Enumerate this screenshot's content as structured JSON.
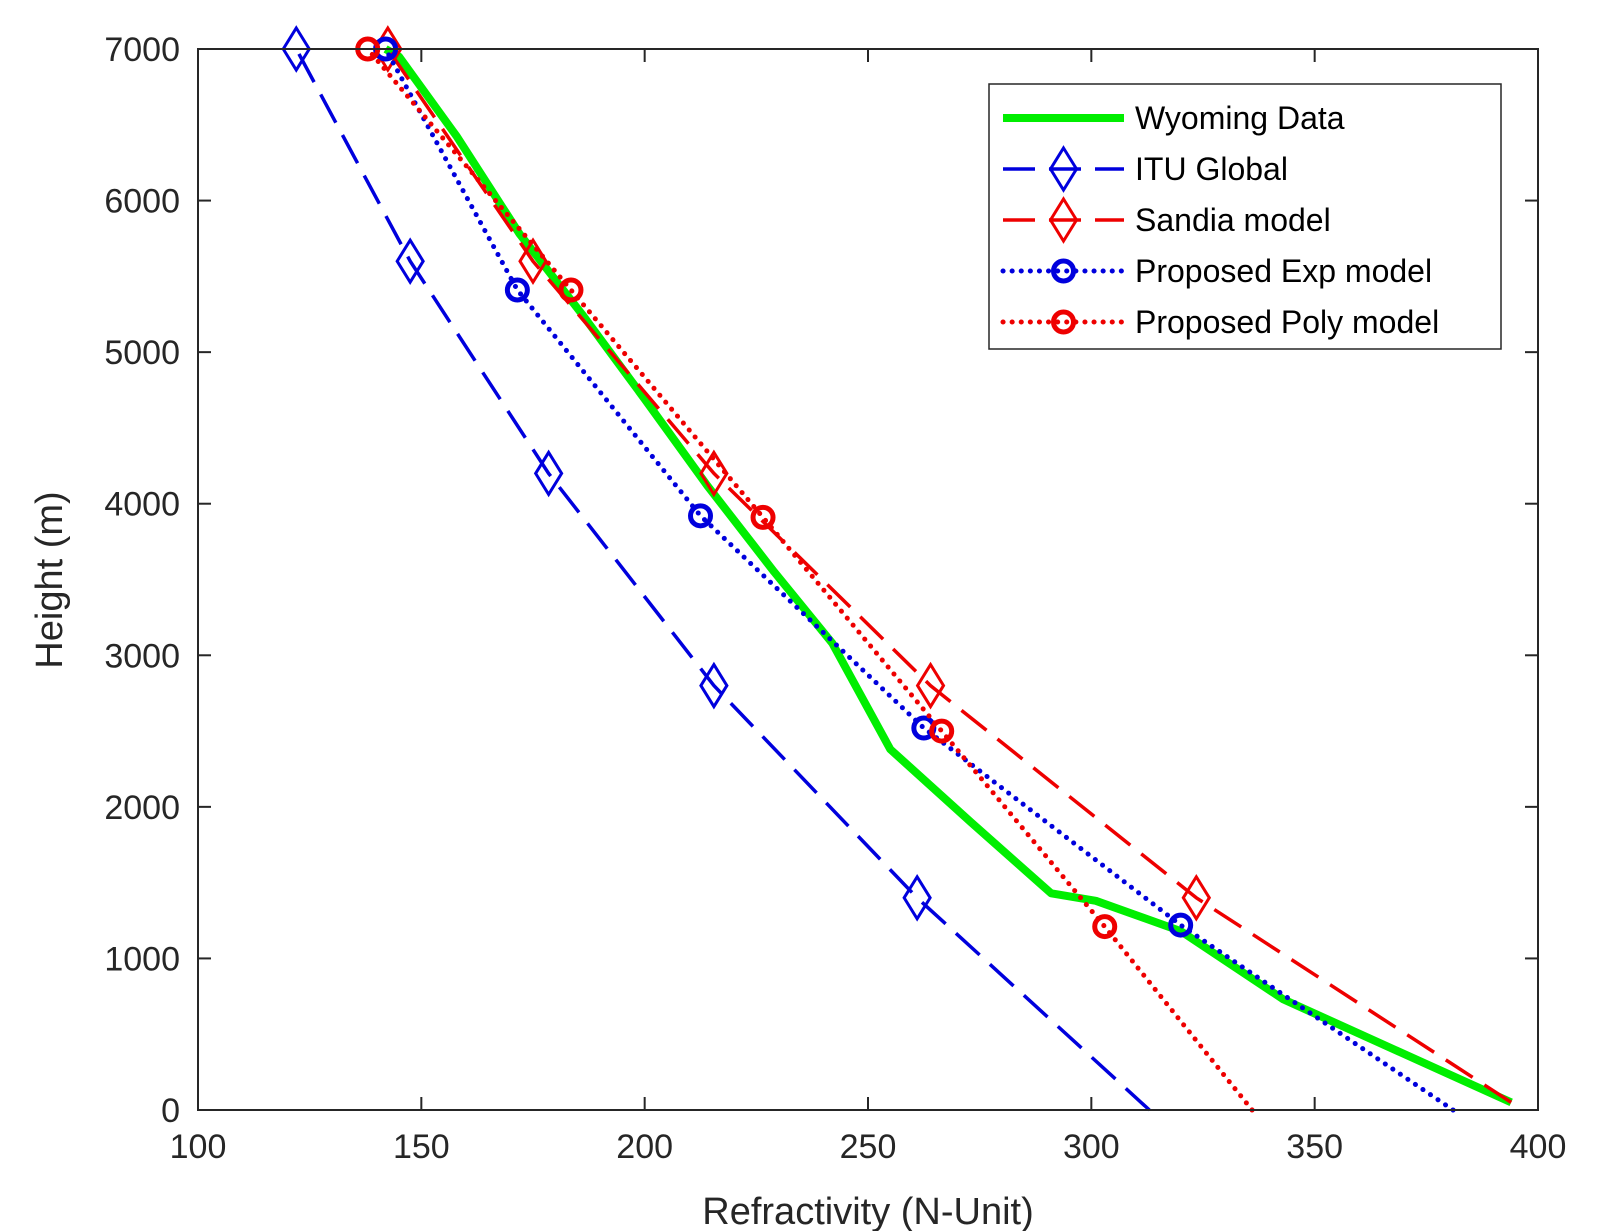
{
  "chart_data": {
    "type": "line",
    "title": "",
    "xlabel": "Refractivity (N-Unit)",
    "ylabel": "Height (m)",
    "xlim": [
      100,
      400
    ],
    "ylim": [
      0,
      7000
    ],
    "xticks": [
      100,
      150,
      200,
      250,
      300,
      350,
      400
    ],
    "yticks": [
      0,
      1000,
      2000,
      3000,
      4000,
      5000,
      6000,
      7000
    ],
    "grid": false,
    "legend_position": "top-right",
    "series": [
      {
        "name": "Wyoming Data",
        "color": "#00ee00",
        "style": "solid",
        "marker": "none",
        "x": [
          394,
          343,
          320,
          301,
          291,
          273,
          255,
          242,
          229,
          214,
          200,
          186,
          172,
          158,
          145,
          142
        ],
        "y": [
          50,
          730,
          1180,
          1380,
          1430,
          1900,
          2380,
          3080,
          3550,
          4120,
          4690,
          5250,
          5780,
          6420,
          6950,
          7000
        ]
      },
      {
        "name": "ITU Global",
        "color": "#0000dd",
        "style": "dashed",
        "marker": "diamond",
        "x": [
          313,
          261,
          215.5,
          178.5,
          147.5,
          122
        ],
        "y": [
          0,
          1400,
          2800,
          4200,
          5600,
          7000
        ],
        "marker_x": [
          122,
          147.5,
          178.5,
          215.5,
          261
        ],
        "marker_y": [
          7000,
          5600,
          4200,
          2800,
          1400
        ]
      },
      {
        "name": "Sandia model",
        "color": "#ee0000",
        "style": "dashed",
        "marker": "diamond",
        "x": [
          394,
          323.5,
          264,
          215.5,
          175,
          142.5
        ],
        "y": [
          50,
          1400,
          2800,
          4200,
          5600,
          7000
        ],
        "marker_x": [
          142.5,
          175,
          215.5,
          264,
          323.5
        ],
        "marker_y": [
          7000,
          5600,
          4200,
          2800,
          1400
        ]
      },
      {
        "name": "Proposed Exp model",
        "color": "#0000dd",
        "style": "dotted",
        "marker": "circle",
        "x": [
          381,
          320,
          262.5,
          212.5,
          171.5,
          142
        ],
        "y": [
          0,
          1220,
          2520,
          3920,
          5410,
          7000
        ],
        "marker_x": [
          142,
          171.5,
          212.5,
          262.5,
          320
        ],
        "marker_y": [
          7000,
          5410,
          3920,
          2520,
          1220
        ]
      },
      {
        "name": "Proposed Poly model",
        "color": "#ee0000",
        "style": "dotted",
        "marker": "circle",
        "x": [
          336,
          303,
          266.5,
          226.5,
          183.5,
          138
        ],
        "y": [
          0,
          1210,
          2500,
          3910,
          5410,
          7000
        ],
        "marker_x": [
          138,
          183.5,
          226.5,
          266.5,
          303
        ],
        "marker_y": [
          7000,
          5410,
          3910,
          2500,
          1210
        ]
      }
    ]
  }
}
